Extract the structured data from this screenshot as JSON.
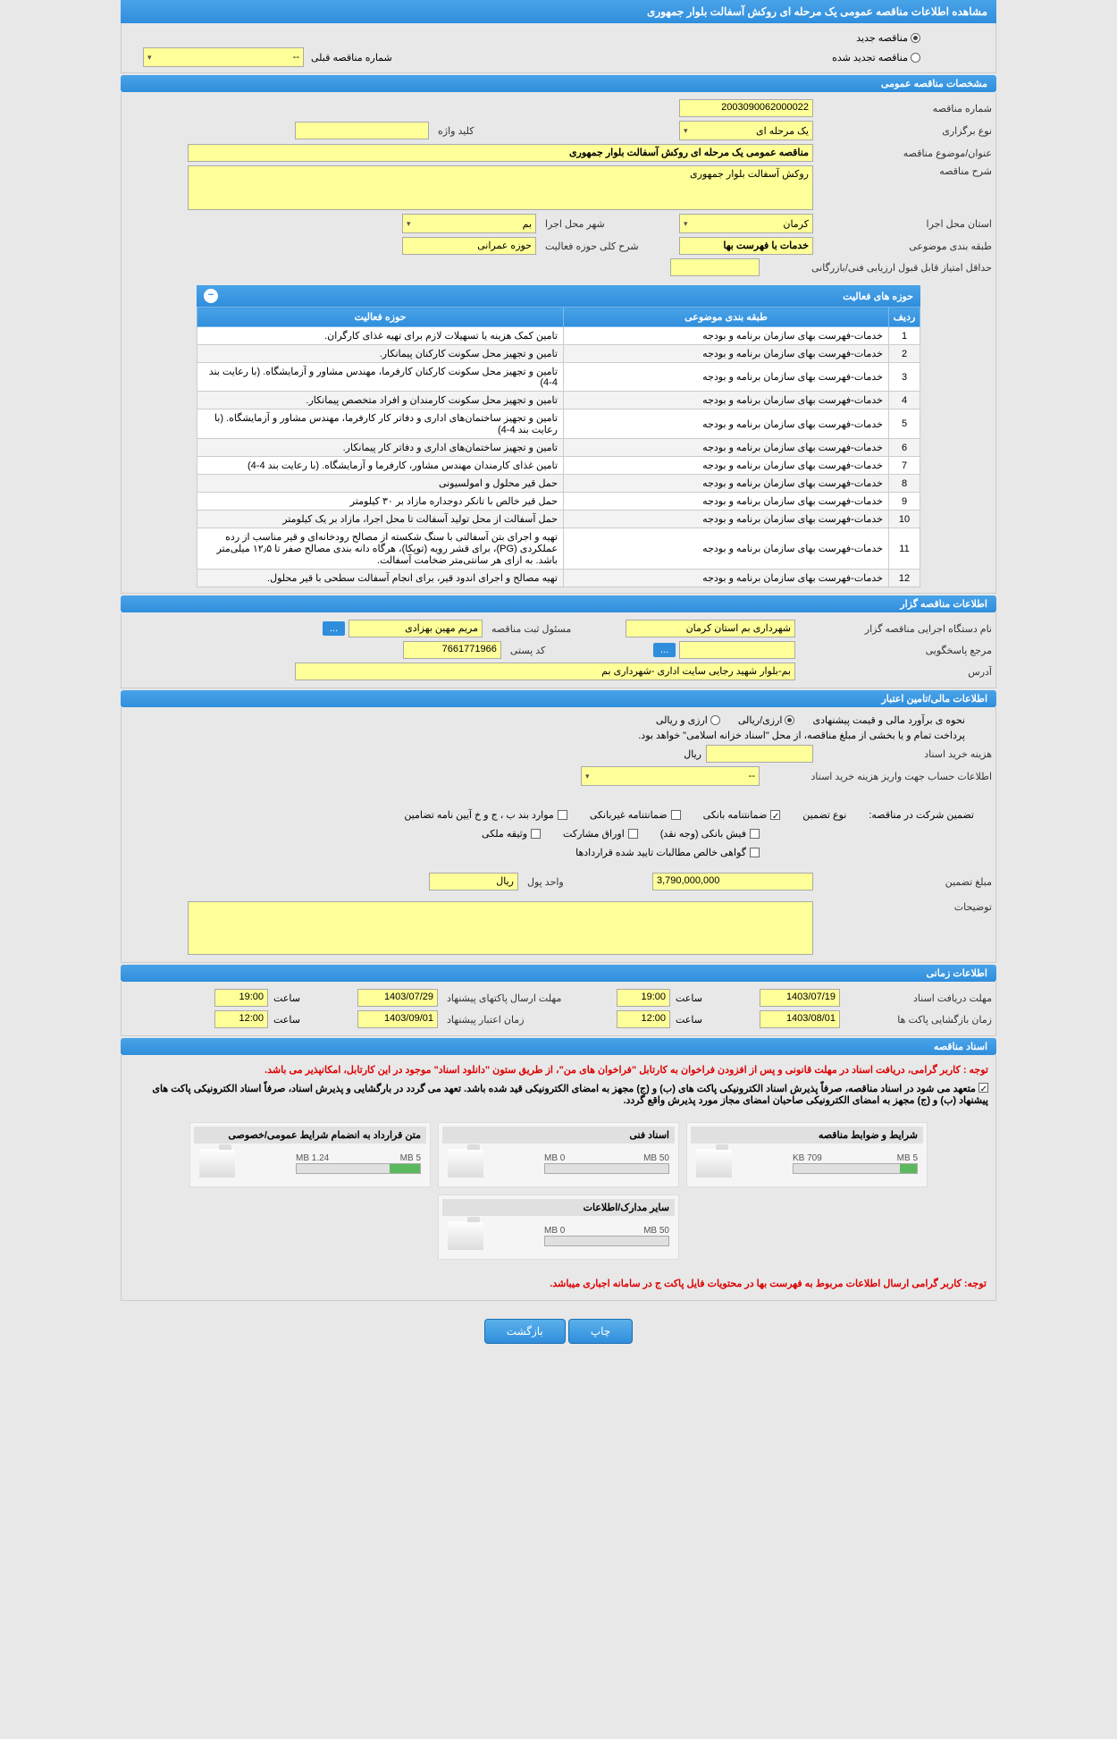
{
  "title": "مشاهده اطلاعات مناقصه عمومی یک مرحله ای روکش آسفالت بلوار جمهوری",
  "radio_new": "مناقصه جدید",
  "radio_renewed": "مناقصه تجدید شده",
  "prev_number_label": "شماره مناقصه قبلی",
  "prev_number_value": "--",
  "sec_general": "مشخصات مناقصه عمومی",
  "fields": {
    "tender_no_label": "شماره مناقصه",
    "tender_no": "2003090062000022",
    "holding_type_label": "نوع برگزاری",
    "holding_type": "یک مرحله ای",
    "keyword_label": "کلید واژه",
    "keyword": "",
    "subject_label": "عنوان/موضوع مناقصه",
    "subject": "مناقصه عمومی یک مرحله ای روکش آسفالت بلوار جمهوری",
    "desc_label": "شرح مناقصه",
    "desc": "روکش آسفالت بلوار جمهوری",
    "province_label": "استان محل اجرا",
    "province": "کرمان",
    "city_label": "شهر محل اجرا",
    "city": "بم",
    "category_label": "طبقه بندی موضوعی",
    "category": "خدمات با فهرست بها",
    "activity_label": "شرح کلی حوزه فعالیت",
    "activity": "حوزه عمرانی",
    "min_score_label": "حداقل امتیاز قابل قبول ارزیابی فنی/بازرگانی",
    "min_score": ""
  },
  "activity_table": {
    "title": "حوزه های فعالیت",
    "cols": {
      "num": "ردیف",
      "cat": "طبقه بندی موضوعی",
      "area": "حوزه فعالیت"
    },
    "category_text": "خدمات-فهرست بهای سازمان برنامه و بودجه",
    "rows": [
      "تامین کمک هزینه یا تسهیلات لازم برای تهیه غذای کارگران.",
      "تامین و تجهیز محل سکونت کارکنان پیمانکار.",
      "تامین و تجهیز محل سکونت کارکنان کارفرما، مهندس مشاور و آزمایشگاه. (با رعایت بند 4-4)",
      "تامین و تجهیز محل سکونت کارمندان و افراد متخصص پیمانکار.",
      "تامین و تجهیز ساختمان‌های اداری و دفاتر کار کارفرما، مهندس مشاور و آزمایشگاه. (با رعایت بند 4-4)",
      "تامین و تجهیز ساختمان‌های اداری و دفاتر کار پیمانکار.",
      "تامین غذای کارمندان مهندس مشاور، کارفرما و آزمایشگاه. (با رعایت بند 4-4)",
      "حمل قیر محلول و امولسیونی",
      "حمل قیر خالص با تانکر دوجداره مازاد بر ۳۰ کیلومتر",
      "حمل آسفالت از محل تولید آسفالت تا محل اجرا، مازاد بر یک کیلومتر",
      "تهیه و اجرای بتن آسفالتی با سنگ شکسته از مصالح رودخانه‌ای و قیر مناسب از رده عملکردی (PG)، برای قشر رویه (توپکا)، هرگاه دانه بندی مصالح صفر تا ۱۲٫۵ میلی‌متر باشد. به ازای هر سانتی‌متر ضخامت آسفالت.",
      "تهیه مصالح و اجرای اندود قیر، برای انجام آسفالت سطحی با قیر محلول."
    ]
  },
  "sec_agency": "اطلاعات مناقصه گزار",
  "agency": {
    "device_label": "نام دستگاه اجرایی مناقصه گزار",
    "device": "شهرداری بم استان کرمان",
    "manager_label": "مسئول ثبت مناقصه",
    "manager": "مریم  مهین بهزادی",
    "reference_label": "مرجع پاسخگویی",
    "reference": "",
    "postal_label": "کد پستی",
    "postal": "7661771966",
    "address_label": "آدرس",
    "address": "بم-بلوار شهید رجایی سایت اداری -شهرداری بم"
  },
  "sec_finance": "اطلاعات مالی/تامین اعتبار",
  "finance": {
    "estimate_label": "نحوه ی برآورد مالی و قیمت پیشنهادی",
    "opt_currency": "ارزی/ریالی",
    "opt_both": "ارزی و ریالی",
    "payment_note": "پرداخت تمام و یا بخشی از مبلغ مناقصه، از محل \"اسناد خزانه اسلامی\" خواهد بود.",
    "buy_cost_label": "هزینه خرید اسناد",
    "buy_cost_unit": "ریال",
    "account_label": "اطلاعات حساب جهت واریز هزینه خرید اسناد",
    "account": "--"
  },
  "guarantee": {
    "title_label": "تضمین شرکت در مناقصه:",
    "type_label": "نوع تضمین",
    "opts": [
      "ضمانتنامه بانکی",
      "ضمانتنامه غیربانکی",
      "موارد بند ب ، ج و خ آیین نامه تضامین",
      "فیش بانکی (وجه نقد)",
      "اوراق مشارکت",
      "وثیقه ملکی",
      "گواهی خالص مطالبات تایید شده قراردادها"
    ],
    "amount_label": "مبلغ تضمین",
    "amount": "3,790,000,000",
    "unit_label": "واحد پول",
    "unit": "ریال",
    "notes_label": "توضیحات"
  },
  "sec_time": "اطلاعات زمانی",
  "time": {
    "receipt_label": "مهلت دریافت اسناد",
    "receipt_date": "1403/07/19",
    "receipt_time": "19:00",
    "send_label": "مهلت ارسال پاکتهای پیشنهاد",
    "send_date": "1403/07/29",
    "send_time": "19:00",
    "open_label": "زمان بازگشایی پاکت ها",
    "open_date": "1403/08/01",
    "open_time": "12:00",
    "valid_label": "زمان اعتبار پیشنهاد",
    "valid_date": "1403/09/01",
    "valid_time": "12:00",
    "time_label": "ساعت"
  },
  "sec_docs": "اسناد مناقصه",
  "notes": {
    "r1a": "توجه : ",
    "r1b": "کاربر گرامی، دریافت اسناد در مهلت قانونی و پس از افزودن فراخوان به کارتابل \"فراخوان های من\"، از طریق ستون \"دانلود اسناد\" موجود در این کارتابل، امکانپذیر می باشد.",
    "b1": "متعهد می شود در اسناد مناقصه، صرفاً پذیرش اسناد الکترونیکی پاکت های (ب) و (ج) مجهز به امضای الکترونیکی قید شده باشد. تعهد می گردد در بارگشایی و پذیرش اسناد، صرفاً اسناد الکترونیکی پاکت های پیشنهاد (ب) و (ج) مجهز به امضای الکترونیکی صاحبان امضای مجاز مورد پذیرش واقع گردد.",
    "r2": "توجه: کاربر گرامی ارسال اطلاعات مربوط به فهرست بها در محتویات فایل پاکت ج در سامانه اجباری میباشد."
  },
  "docs": [
    {
      "title": "شرایط و ضوابط مناقصه",
      "used": "709 KB",
      "max": "5 MB",
      "pct": 14
    },
    {
      "title": "اسناد فنی",
      "used": "0 MB",
      "max": "50 MB",
      "pct": 0
    },
    {
      "title": "متن قرارداد به انضمام شرایط عمومی/خصوصی",
      "used": "1.24 MB",
      "max": "5 MB",
      "pct": 25
    },
    {
      "title": "سایر مدارک/اطلاعات",
      "used": "0 MB",
      "max": "50 MB",
      "pct": 0
    }
  ],
  "btn_print": "چاپ",
  "btn_back": "بازگشت",
  "ellipsis": "..."
}
